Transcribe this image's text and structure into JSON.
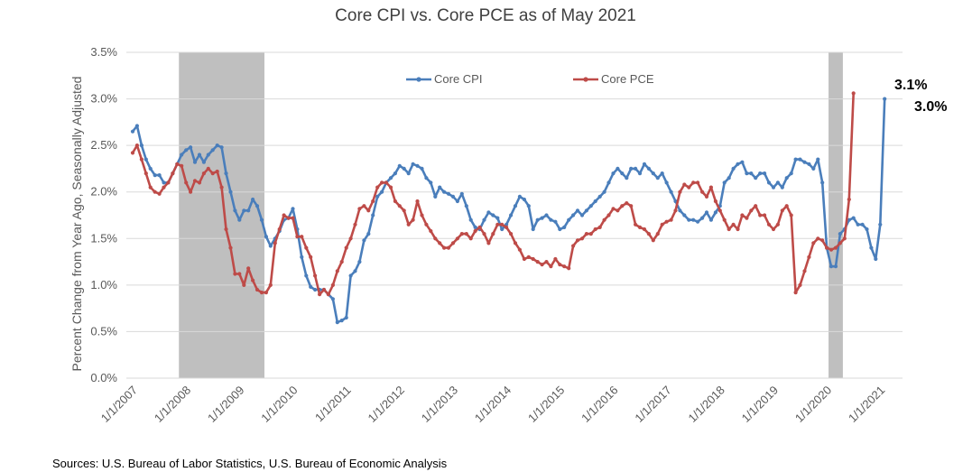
{
  "chart_data": {
    "type": "line",
    "title": "Core CPI vs. Core PCE as of May 2021",
    "ylabel": "Percent Change from Year Ago, Seasonally Adjusted",
    "xlabel": "",
    "ylim": [
      0,
      3.5
    ],
    "y_ticks": [
      0,
      0.5,
      1.0,
      1.5,
      2.0,
      2.5,
      3.0,
      3.5
    ],
    "y_tick_labels": [
      "0.0%",
      "0.5%",
      "1.0%",
      "1.5%",
      "2.0%",
      "2.5%",
      "3.0%",
      "3.5%"
    ],
    "x_start": "2007-01",
    "x_end": "2021-05",
    "x_tick_labels": [
      "1/1/2007",
      "1/1/2008",
      "1/1/2009",
      "1/1/2010",
      "1/1/2011",
      "1/1/2012",
      "1/1/2013",
      "1/1/2014",
      "1/1/2015",
      "1/1/2016",
      "1/1/2017",
      "1/1/2018",
      "1/1/2019",
      "1/1/2020",
      "1/1/2021"
    ],
    "grid": true,
    "legend_position": "top-center",
    "recessions": [
      {
        "start": "2007-12",
        "end": "2009-06"
      },
      {
        "start": "2020-02",
        "end": "2020-04"
      }
    ],
    "series": [
      {
        "name": "Core CPI",
        "color": "#4a7ebb",
        "values": [
          2.65,
          2.71,
          2.5,
          2.35,
          2.25,
          2.18,
          2.18,
          2.1,
          2.1,
          2.2,
          2.3,
          2.4,
          2.45,
          2.48,
          2.32,
          2.4,
          2.32,
          2.4,
          2.45,
          2.5,
          2.48,
          2.2,
          2.0,
          1.8,
          1.7,
          1.8,
          1.8,
          1.92,
          1.85,
          1.7,
          1.52,
          1.42,
          1.5,
          1.58,
          1.7,
          1.72,
          1.82,
          1.6,
          1.3,
          1.1,
          0.98,
          0.95,
          0.95,
          0.95,
          0.9,
          0.85,
          0.6,
          0.62,
          0.65,
          1.1,
          1.15,
          1.25,
          1.48,
          1.55,
          1.75,
          1.95,
          2.0,
          2.1,
          2.15,
          2.2,
          2.28,
          2.25,
          2.2,
          2.3,
          2.28,
          2.25,
          2.15,
          2.1,
          1.95,
          2.05,
          2.0,
          1.98,
          1.95,
          1.9,
          1.98,
          1.85,
          1.7,
          1.62,
          1.6,
          1.7,
          1.78,
          1.75,
          1.72,
          1.6,
          1.65,
          1.75,
          1.85,
          1.95,
          1.92,
          1.85,
          1.6,
          1.7,
          1.72,
          1.75,
          1.7,
          1.68,
          1.6,
          1.62,
          1.7,
          1.75,
          1.8,
          1.75,
          1.8,
          1.85,
          1.9,
          1.95,
          2.0,
          2.1,
          2.2,
          2.25,
          2.2,
          2.15,
          2.25,
          2.25,
          2.2,
          2.3,
          2.25,
          2.2,
          2.15,
          2.2,
          2.1,
          2.0,
          1.9,
          1.8,
          1.75,
          1.7,
          1.7,
          1.68,
          1.72,
          1.78,
          1.7,
          1.78,
          1.85,
          2.1,
          2.15,
          2.25,
          2.3,
          2.32,
          2.2,
          2.2,
          2.15,
          2.2,
          2.2,
          2.1,
          2.05,
          2.1,
          2.05,
          2.15,
          2.2,
          2.35,
          2.35,
          2.32,
          2.3,
          2.25,
          2.35,
          2.1,
          1.4,
          1.2,
          1.2,
          1.55,
          1.6,
          1.7,
          1.72,
          1.65,
          1.65,
          1.6,
          1.4,
          1.28,
          1.65,
          3.0
        ]
      },
      {
        "name": "Core PCE",
        "color": "#be4b48",
        "values": [
          2.42,
          2.5,
          2.35,
          2.2,
          2.05,
          2.0,
          1.98,
          2.05,
          2.1,
          2.2,
          2.3,
          2.28,
          2.1,
          2.0,
          2.12,
          2.1,
          2.2,
          2.25,
          2.2,
          2.22,
          2.05,
          1.6,
          1.4,
          1.12,
          1.12,
          1.0,
          1.18,
          1.05,
          0.95,
          0.92,
          0.92,
          1.0,
          1.45,
          1.6,
          1.75,
          1.72,
          1.72,
          1.52,
          1.52,
          1.4,
          1.3,
          1.1,
          0.9,
          0.95,
          0.9,
          1.0,
          1.15,
          1.25,
          1.4,
          1.5,
          1.65,
          1.82,
          1.85,
          1.8,
          1.9,
          2.05,
          2.1,
          2.1,
          2.05,
          1.9,
          1.85,
          1.8,
          1.65,
          1.7,
          1.9,
          1.75,
          1.65,
          1.58,
          1.5,
          1.45,
          1.4,
          1.4,
          1.45,
          1.5,
          1.55,
          1.55,
          1.5,
          1.58,
          1.62,
          1.55,
          1.45,
          1.55,
          1.65,
          1.65,
          1.62,
          1.55,
          1.45,
          1.38,
          1.28,
          1.3,
          1.28,
          1.25,
          1.22,
          1.25,
          1.2,
          1.28,
          1.22,
          1.2,
          1.18,
          1.42,
          1.48,
          1.5,
          1.55,
          1.55,
          1.6,
          1.62,
          1.7,
          1.75,
          1.82,
          1.8,
          1.85,
          1.88,
          1.85,
          1.65,
          1.62,
          1.6,
          1.55,
          1.48,
          1.55,
          1.65,
          1.68,
          1.7,
          1.8,
          2.0,
          2.08,
          2.05,
          2.1,
          2.1,
          2.0,
          1.95,
          2.05,
          1.9,
          1.8,
          1.7,
          1.6,
          1.65,
          1.6,
          1.75,
          1.72,
          1.8,
          1.85,
          1.75,
          1.75,
          1.65,
          1.6,
          1.65,
          1.8,
          1.85,
          1.75,
          0.92,
          1.0,
          1.15,
          1.3,
          1.45,
          1.5,
          1.48,
          1.4,
          1.38,
          1.4,
          1.45,
          1.5,
          1.92,
          3.06
        ]
      }
    ],
    "annotations": [
      {
        "text": "3.1%",
        "series": "Core PCE"
      },
      {
        "text": "3.0%",
        "series": "Core CPI"
      }
    ]
  },
  "footer": {
    "source": "Sources: U.S. Bureau of Labor Statistics, U.S. Bureau of Economic Analysis"
  }
}
